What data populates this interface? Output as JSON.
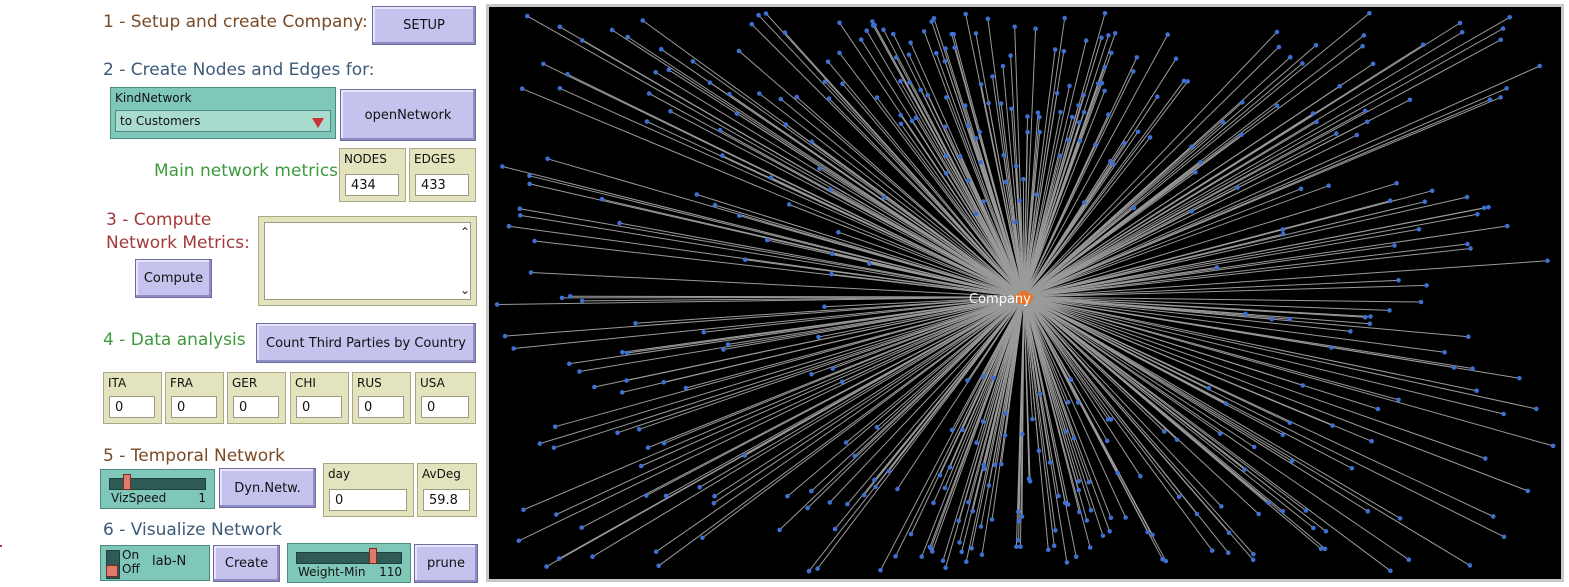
{
  "sections": {
    "s1": "1 - Setup and create Company:",
    "s2": "2 - Create Nodes and Edges for:",
    "metrics": "Main network metrics",
    "s3_line1": "3 - Compute",
    "s3_line2": "Network Metrics:",
    "s4": "4 - Data analysis",
    "s5": "5 - Temporal Network",
    "s6": "6 - Visualize Network"
  },
  "buttons": {
    "setup": "SETUP",
    "open_network": "openNetwork",
    "compute": "Compute",
    "count_third_parties": "Count Third Parties by Country",
    "dyn_netw": "Dyn.Netw.",
    "create": "Create",
    "prune": "prune"
  },
  "chooser": {
    "label": "KindNetwork",
    "value": "to Customers"
  },
  "monitors": {
    "nodes": {
      "label": "NODES",
      "value": "434"
    },
    "edges": {
      "label": "EDGES",
      "value": "433"
    },
    "countries": [
      {
        "label": "ITA",
        "value": "0"
      },
      {
        "label": "FRA",
        "value": "0"
      },
      {
        "label": "GER",
        "value": "0"
      },
      {
        "label": "CHI",
        "value": "0"
      },
      {
        "label": "RUS",
        "value": "0"
      },
      {
        "label": "USA",
        "value": "0"
      }
    ],
    "day": {
      "label": "day",
      "value": "0"
    },
    "avdeg": {
      "label": "AvDeg",
      "value": "59.8"
    }
  },
  "sliders": {
    "vizspeed": {
      "label": "VizSpeed",
      "value": "1",
      "level": 0.15
    },
    "weight_min": {
      "label": "Weight-Min",
      "value": "110",
      "level": 0.73
    }
  },
  "switch": {
    "on_label": "On",
    "off_label": "Off",
    "name": "lab-N",
    "state": "off"
  },
  "world": {
    "center_label": "Company",
    "node_count": 433,
    "edge_color": "#9a9a9a",
    "node_color": "#3f6fd1",
    "center_color": "#e8742a",
    "label_color": "#ffffff"
  },
  "colors": {
    "button": "#c5c3ee",
    "monitor": "#e3e3bd",
    "widget_green": "#7fc7b8",
    "world_bg": "#000000"
  }
}
